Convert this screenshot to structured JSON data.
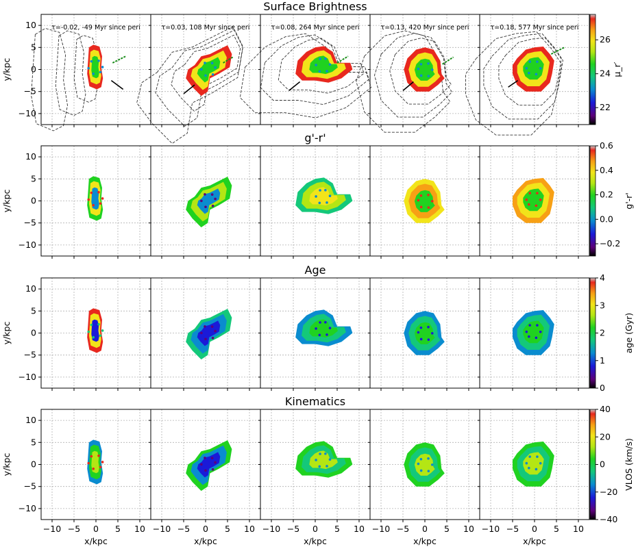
{
  "figure": {
    "xlabel": "x/kpc",
    "ylabel": "y/kpc",
    "xticks": [
      "−10",
      "−5",
      "0",
      "5",
      "10"
    ],
    "yticks": [
      "10",
      "5",
      "0",
      "−5",
      "−10"
    ]
  },
  "chart_data": [
    {
      "type": "heatmap",
      "title": "Surface Brightness",
      "panel_titles": [
        "τ=-0.02, -49 Myr since peri",
        "τ=0.03, 108 Myr since peri",
        "τ=0.08, 264 Myr since peri",
        "τ=0.13, 420 Myr since peri",
        "τ=0.18, 577 Myr since peri"
      ],
      "xlabel": "",
      "ylabel": "y/kpc",
      "xlim": [
        -12.5,
        12.5
      ],
      "ylim": [
        -12.5,
        12.5
      ],
      "colorbar": {
        "label": "μ_r′",
        "range": [
          21,
          27.5
        ],
        "ticks": [
          "22",
          "24",
          "26"
        ]
      },
      "grid": true
    },
    {
      "type": "heatmap",
      "title": "g'-r'",
      "xlabel": "",
      "ylabel": "y/kpc",
      "xlim": [
        -12.5,
        12.5
      ],
      "ylim": [
        -12.5,
        12.5
      ],
      "colorbar": {
        "label": "g'-r'",
        "range": [
          -0.3,
          0.6
        ],
        "ticks": [
          "0.6",
          "0.4",
          "0.2",
          "0.0",
          "−0.2"
        ]
      },
      "grid": true
    },
    {
      "type": "heatmap",
      "title": "Age",
      "xlabel": "",
      "ylabel": "y/kpc",
      "xlim": [
        -12.5,
        12.5
      ],
      "ylim": [
        -12.5,
        12.5
      ],
      "colorbar": {
        "label": "age (Gyr)",
        "range": [
          0,
          4
        ],
        "ticks": [
          "4",
          "3",
          "2",
          "1",
          "0"
        ]
      },
      "grid": true
    },
    {
      "type": "heatmap",
      "title": "Kinematics",
      "xlabel": "x/kpc",
      "ylabel": "y/kpc",
      "xlim": [
        -12.5,
        12.5
      ],
      "ylim": [
        -12.5,
        12.5
      ],
      "colorbar": {
        "label": "VLOS (km/s)",
        "range": [
          -40,
          40
        ],
        "ticks": [
          "40",
          "20",
          "0",
          "−20",
          "−40"
        ]
      },
      "grid": true
    }
  ],
  "colors": {
    "cmap_spectral": [
      "#000000",
      "#5c007a",
      "#1a1ad8",
      "#0a8ccf",
      "#14c87a",
      "#20d220",
      "#b4e614",
      "#f2e41a",
      "#f7a015",
      "#e8281e",
      "#c8c8c8"
    ],
    "contour": "#333333",
    "arrow_green": "#1a8c1a",
    "grid": "#b0b0b0"
  }
}
